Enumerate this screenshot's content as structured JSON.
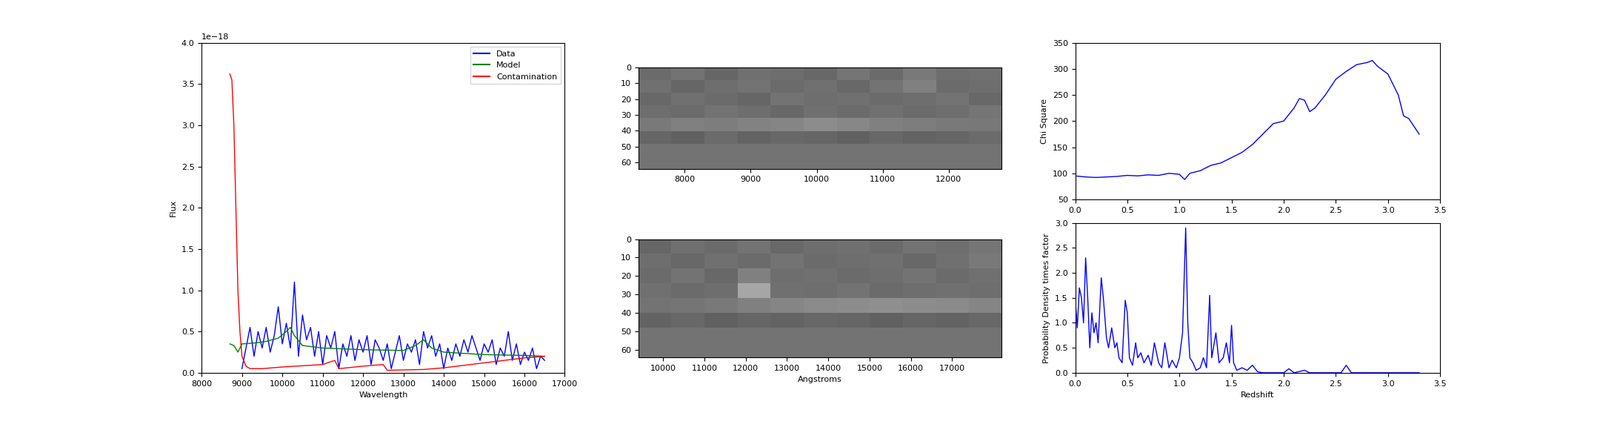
{
  "chart_data": [
    {
      "type": "line",
      "xlabel": "Wavelength",
      "ylabel": "Flux",
      "offset_text": "1e−18",
      "xlim": [
        8000,
        17000
      ],
      "xticks": [
        8000,
        9000,
        10000,
        11000,
        12000,
        13000,
        14000,
        15000,
        16000,
        17000
      ],
      "ylim": [
        0.0,
        4.0
      ],
      "yticks": [
        0.0,
        0.5,
        1.0,
        1.5,
        2.0,
        2.5,
        3.0,
        3.5,
        4.0
      ],
      "legend": "upper right",
      "series": [
        {
          "name": "Data",
          "color": "#0000ff",
          "x": [
            9000,
            9100,
            9200,
            9300,
            9400,
            9500,
            9600,
            9700,
            9800,
            9900,
            10000,
            10100,
            10200,
            10300,
            10400,
            10500,
            10600,
            10700,
            10800,
            10900,
            11000,
            11100,
            11200,
            11300,
            11400,
            11500,
            11600,
            11700,
            11800,
            11900,
            12000,
            12100,
            12200,
            12300,
            12400,
            12500,
            12600,
            12700,
            12800,
            12900,
            13000,
            13100,
            13200,
            13300,
            13400,
            13500,
            13600,
            13700,
            13800,
            13900,
            14000,
            14100,
            14200,
            14300,
            14400,
            14500,
            14600,
            14700,
            14800,
            14900,
            15000,
            15100,
            15200,
            15300,
            15400,
            15500,
            15600,
            15700,
            15800,
            15900,
            16000,
            16100,
            16200,
            16300,
            16400,
            16500
          ],
          "values": [
            0.05,
            0.3,
            0.55,
            0.2,
            0.5,
            0.3,
            0.55,
            0.25,
            0.45,
            0.8,
            0.35,
            0.6,
            0.3,
            1.1,
            0.2,
            0.7,
            0.4,
            0.55,
            0.2,
            0.5,
            0.1,
            0.45,
            0.3,
            0.5,
            0.05,
            0.35,
            0.2,
            0.45,
            0.15,
            0.4,
            0.25,
            0.45,
            0.1,
            0.4,
            0.3,
            0.15,
            0.35,
            0.05,
            0.25,
            0.45,
            0.15,
            0.35,
            0.25,
            0.4,
            0.1,
            0.5,
            0.3,
            0.45,
            0.2,
            0.35,
            0.05,
            0.3,
            0.15,
            0.35,
            0.2,
            0.4,
            0.25,
            0.45,
            0.3,
            0.15,
            0.35,
            0.25,
            0.4,
            0.1,
            0.3,
            0.2,
            0.5,
            0.15,
            0.35,
            0.1,
            0.25,
            0.15,
            0.3,
            0.05,
            0.2,
            0.15
          ]
        },
        {
          "name": "Model",
          "color": "#008000",
          "x": [
            8700,
            8800,
            8900,
            9000,
            9300,
            9600,
            9900,
            10100,
            10200,
            10300,
            10500,
            11000,
            12000,
            13000,
            13300,
            13500,
            13700,
            14000,
            15000,
            16000,
            16500
          ],
          "values": [
            0.35,
            0.33,
            0.25,
            0.35,
            0.36,
            0.38,
            0.42,
            0.5,
            0.55,
            0.45,
            0.33,
            0.3,
            0.28,
            0.27,
            0.33,
            0.4,
            0.3,
            0.25,
            0.22,
            0.21,
            0.2
          ]
        },
        {
          "name": "Contamination",
          "color": "#ff0000",
          "x": [
            8700,
            8750,
            8800,
            8850,
            8900,
            8950,
            9000,
            9100,
            9200,
            9500,
            10000,
            11000,
            11300,
            11400,
            12000,
            12500,
            12600,
            13500,
            14000,
            15000,
            16000,
            16500
          ],
          "values": [
            3.62,
            3.55,
            3.0,
            2.0,
            1.0,
            0.5,
            0.2,
            0.08,
            0.05,
            0.05,
            0.07,
            0.1,
            0.15,
            0.05,
            0.08,
            0.1,
            0.03,
            0.04,
            0.06,
            0.12,
            0.18,
            0.2
          ]
        }
      ]
    },
    {
      "type": "heatmap",
      "color": "gray",
      "color_range": [
        0,
        1
      ],
      "x_extent": [
        7300,
        12800
      ],
      "y_extent": [
        64,
        0
      ],
      "xlim": [
        7300,
        12800
      ],
      "xticks": [
        8000,
        9000,
        10000,
        11000,
        12000
      ],
      "ylim": [
        64,
        0
      ],
      "yticks": [
        0,
        10,
        20,
        30,
        40,
        50,
        60
      ],
      "cells": [
        [
          0.42,
          0.45,
          0.4,
          0.44,
          0.43,
          0.41,
          0.46,
          0.42,
          0.48,
          0.43,
          0.44
        ],
        [
          0.44,
          0.4,
          0.43,
          0.45,
          0.42,
          0.44,
          0.41,
          0.45,
          0.5,
          0.42,
          0.43
        ],
        [
          0.41,
          0.44,
          0.42,
          0.4,
          0.45,
          0.43,
          0.44,
          0.42,
          0.43,
          0.45,
          0.41
        ],
        [
          0.43,
          0.42,
          0.45,
          0.43,
          0.41,
          0.44,
          0.42,
          0.44,
          0.42,
          0.43,
          0.46
        ],
        [
          0.48,
          0.5,
          0.49,
          0.51,
          0.52,
          0.55,
          0.53,
          0.5,
          0.49,
          0.48,
          0.47
        ],
        [
          0.4,
          0.38,
          0.42,
          0.39,
          0.41,
          0.4,
          0.38,
          0.41,
          0.39,
          0.4,
          0.42
        ],
        [
          0.45,
          0.45,
          0.45,
          0.45,
          0.45,
          0.45,
          0.45,
          0.45,
          0.45,
          0.45,
          0.45
        ],
        [
          0.45,
          0.45,
          0.45,
          0.45,
          0.45,
          0.45,
          0.45,
          0.45,
          0.45,
          0.45,
          0.45
        ]
      ]
    },
    {
      "type": "heatmap",
      "color": "gray",
      "color_range": [
        0,
        1
      ],
      "xlabel": "Angstroms",
      "x_extent": [
        9400,
        18200
      ],
      "y_extent": [
        64,
        0
      ],
      "xlim": [
        9400,
        18200
      ],
      "xticks": [
        10000,
        11000,
        12000,
        13000,
        14000,
        15000,
        16000,
        17000
      ],
      "ylim": [
        64,
        0
      ],
      "yticks": [
        0,
        10,
        20,
        30,
        40,
        50,
        60
      ],
      "cells": [
        [
          0.4,
          0.44,
          0.42,
          0.45,
          0.41,
          0.43,
          0.44,
          0.42,
          0.45,
          0.43,
          0.46
        ],
        [
          0.43,
          0.41,
          0.44,
          0.42,
          0.45,
          0.42,
          0.43,
          0.44,
          0.41,
          0.44,
          0.48
        ],
        [
          0.42,
          0.45,
          0.41,
          0.5,
          0.43,
          0.44,
          0.42,
          0.43,
          0.45,
          0.42,
          0.44
        ],
        [
          0.44,
          0.42,
          0.43,
          0.65,
          0.44,
          0.43,
          0.45,
          0.42,
          0.43,
          0.44,
          0.43
        ],
        [
          0.45,
          0.46,
          0.48,
          0.5,
          0.52,
          0.54,
          0.55,
          0.56,
          0.55,
          0.54,
          0.52
        ],
        [
          0.39,
          0.41,
          0.38,
          0.4,
          0.39,
          0.41,
          0.4,
          0.38,
          0.4,
          0.39,
          0.41
        ],
        [
          0.45,
          0.45,
          0.45,
          0.45,
          0.45,
          0.45,
          0.45,
          0.45,
          0.45,
          0.45,
          0.45
        ],
        [
          0.45,
          0.45,
          0.45,
          0.45,
          0.45,
          0.45,
          0.45,
          0.45,
          0.45,
          0.45,
          0.45
        ]
      ]
    },
    {
      "type": "line",
      "ylabel": "Chi Square",
      "color": "#0000ff",
      "xlim": [
        0.0,
        3.5
      ],
      "xticks": [
        0.0,
        0.5,
        1.0,
        1.5,
        2.0,
        2.5,
        3.0,
        3.5
      ],
      "ylim": [
        50,
        350
      ],
      "yticks": [
        50,
        100,
        150,
        200,
        250,
        300,
        350
      ],
      "x": [
        0.0,
        0.1,
        0.2,
        0.3,
        0.4,
        0.5,
        0.6,
        0.7,
        0.8,
        0.9,
        1.0,
        1.05,
        1.1,
        1.2,
        1.3,
        1.4,
        1.5,
        1.6,
        1.7,
        1.8,
        1.9,
        2.0,
        2.1,
        2.15,
        2.2,
        2.25,
        2.3,
        2.4,
        2.5,
        2.6,
        2.7,
        2.8,
        2.85,
        2.9,
        3.0,
        3.1,
        3.15,
        3.2,
        3.3
      ],
      "values": [
        95,
        93,
        92,
        93,
        94,
        96,
        95,
        97,
        96,
        100,
        98,
        88,
        100,
        105,
        115,
        120,
        130,
        140,
        155,
        175,
        195,
        200,
        225,
        243,
        240,
        218,
        225,
        250,
        280,
        295,
        308,
        312,
        316,
        305,
        290,
        250,
        210,
        205,
        175
      ]
    },
    {
      "type": "line",
      "xlabel": "Redshift",
      "ylabel": "Probability Density times factor",
      "color": "#0000ff",
      "xlim": [
        0.0,
        3.5
      ],
      "xticks": [
        0.0,
        0.5,
        1.0,
        1.5,
        2.0,
        2.5,
        3.0,
        3.5
      ],
      "ylim": [
        0.0,
        3.0
      ],
      "yticks": [
        0.0,
        0.5,
        1.0,
        1.5,
        2.0,
        2.5,
        3.0
      ],
      "x": [
        0.0,
        0.02,
        0.04,
        0.06,
        0.08,
        0.1,
        0.12,
        0.14,
        0.16,
        0.18,
        0.2,
        0.22,
        0.25,
        0.27,
        0.3,
        0.32,
        0.35,
        0.38,
        0.4,
        0.42,
        0.45,
        0.48,
        0.5,
        0.52,
        0.55,
        0.58,
        0.6,
        0.63,
        0.66,
        0.7,
        0.73,
        0.76,
        0.8,
        0.83,
        0.86,
        0.9,
        0.93,
        0.97,
        1.0,
        1.03,
        1.06,
        1.08,
        1.1,
        1.13,
        1.16,
        1.2,
        1.23,
        1.26,
        1.29,
        1.31,
        1.35,
        1.38,
        1.42,
        1.45,
        1.48,
        1.5,
        1.52,
        1.55,
        1.6,
        1.65,
        1.7,
        1.75,
        1.8,
        2.0,
        2.05,
        2.1,
        2.2,
        2.25,
        2.55,
        2.6,
        2.65,
        3.3
      ],
      "values": [
        1.5,
        0.9,
        1.7,
        1.5,
        1.0,
        2.3,
        1.5,
        0.5,
        1.2,
        0.8,
        1.0,
        0.6,
        1.9,
        1.5,
        0.7,
        0.5,
        0.9,
        0.5,
        0.6,
        0.3,
        0.2,
        1.45,
        1.2,
        0.3,
        0.15,
        0.6,
        0.3,
        0.4,
        0.2,
        0.35,
        0.15,
        0.6,
        0.2,
        0.1,
        0.6,
        0.1,
        0.25,
        0.1,
        0.3,
        0.8,
        2.9,
        1.0,
        0.3,
        0.2,
        0.05,
        0.1,
        0.3,
        0.1,
        1.55,
        0.3,
        0.8,
        0.2,
        0.3,
        0.6,
        0.2,
        0.95,
        0.2,
        0.05,
        0.1,
        0.05,
        0.15,
        0.02,
        0.0,
        0.0,
        0.08,
        0.0,
        0.05,
        0.0,
        0.0,
        0.15,
        0.0,
        0.0
      ]
    }
  ]
}
